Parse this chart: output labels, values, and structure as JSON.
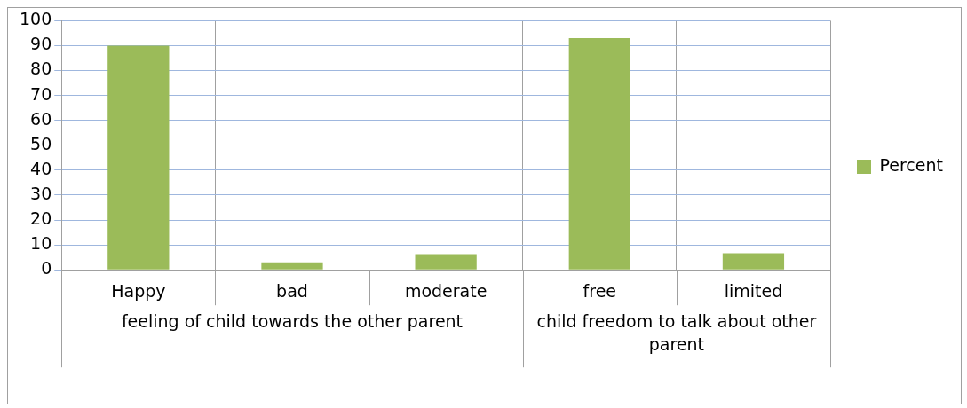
{
  "chart_data": {
    "type": "bar",
    "categories": [
      "Happy",
      "bad",
      "moderate",
      "free",
      "limited"
    ],
    "series": [
      {
        "name": "Percent",
        "color": "#9bbb59",
        "values": [
          90,
          3,
          6.3,
          93,
          6.7
        ]
      }
    ],
    "ylim": [
      0,
      100
    ],
    "yticks": [
      0,
      10,
      20,
      30,
      40,
      50,
      60,
      70,
      80,
      90,
      100
    ],
    "grid": true,
    "legend": "right",
    "annotations": [
      "feeling of child towards the other parent",
      "child freedom to talk about other parent"
    ]
  }
}
